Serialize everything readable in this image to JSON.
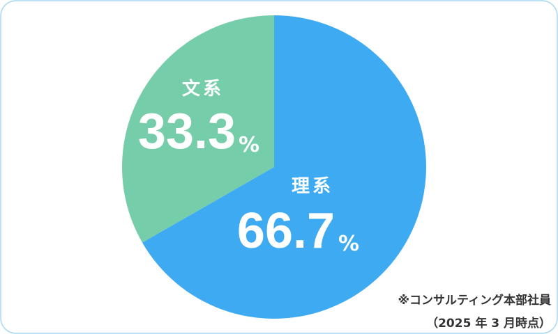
{
  "chart_data": {
    "type": "pie",
    "categories": [
      "理系",
      "文系"
    ],
    "values": [
      66.7,
      33.3
    ],
    "colors": [
      "#3daaf2",
      "#76cdaa"
    ],
    "unit": "%",
    "annotations": [
      "※コンサルティング本部社員",
      "（2025 年 3 月時点）"
    ]
  }
}
